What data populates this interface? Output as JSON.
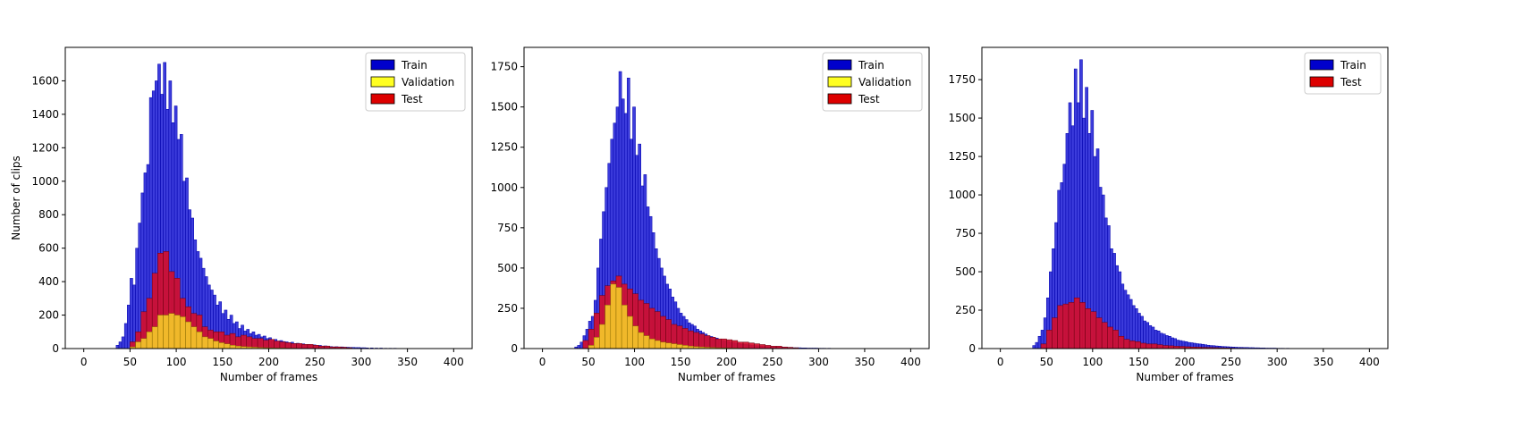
{
  "chart_data": [
    {
      "type": "histogram",
      "xlabel": "Number of frames",
      "ylabel": "Number of clips",
      "xlim": [
        -20,
        420
      ],
      "ylim": [
        0,
        1800
      ],
      "xticks": [
        0,
        50,
        100,
        150,
        200,
        250,
        300,
        350,
        400
      ],
      "yticks": [
        0,
        200,
        400,
        600,
        800,
        1000,
        1200,
        1400,
        1600
      ],
      "legend_position": "top-right",
      "colors": {
        "Train": "#0000cc",
        "Validation": "#ffff22",
        "Test": "#dd0000"
      },
      "bars": {
        "Train": {
          "bin_width": 3,
          "x": [
            35,
            38,
            41,
            44,
            47,
            50,
            53,
            56,
            59,
            62,
            65,
            68,
            71,
            74,
            77,
            80,
            83,
            86,
            89,
            92,
            95,
            98,
            101,
            104,
            107,
            110,
            113,
            116,
            119,
            122,
            125,
            128,
            131,
            134,
            137,
            140,
            143,
            146,
            149,
            152,
            155,
            158,
            161,
            164,
            167,
            170,
            173,
            176,
            179,
            182,
            185,
            188,
            191,
            194,
            197,
            200,
            203,
            206,
            209,
            212,
            215,
            218,
            221,
            224,
            227,
            230,
            233,
            236,
            239,
            242,
            245,
            248,
            251,
            254,
            257,
            260,
            263,
            266,
            269,
            272,
            275,
            278,
            281,
            284,
            287,
            290,
            293,
            296,
            299,
            302,
            305,
            310,
            315,
            320,
            325,
            330,
            335,
            340
          ],
          "values": [
            20,
            40,
            70,
            150,
            260,
            420,
            380,
            600,
            750,
            930,
            1050,
            1100,
            1500,
            1540,
            1600,
            1700,
            1520,
            1710,
            1430,
            1600,
            1350,
            1450,
            1250,
            1280,
            1000,
            1020,
            830,
            780,
            650,
            580,
            540,
            480,
            430,
            380,
            350,
            320,
            260,
            280,
            210,
            230,
            175,
            200,
            150,
            160,
            120,
            140,
            105,
            115,
            90,
            100,
            80,
            85,
            70,
            75,
            60,
            65,
            50,
            55,
            45,
            48,
            42,
            40,
            35,
            38,
            30,
            32,
            26,
            28,
            22,
            24,
            20,
            22,
            18,
            19,
            15,
            16,
            13,
            12,
            10,
            11,
            9,
            10,
            8,
            8,
            7,
            7,
            6,
            6,
            5,
            5,
            4,
            4,
            3,
            3,
            2,
            2,
            2,
            1
          ]
        },
        "Test": {
          "bin_width": 6,
          "x": [
            50,
            56,
            62,
            68,
            74,
            80,
            86,
            92,
            98,
            104,
            110,
            116,
            122,
            128,
            134,
            140,
            146,
            152,
            158,
            164,
            170,
            176,
            182,
            188,
            194,
            200,
            206,
            212,
            218,
            224,
            230,
            236,
            242,
            248,
            254,
            260,
            266,
            272,
            278,
            284
          ],
          "values": [
            40,
            100,
            220,
            300,
            450,
            570,
            580,
            460,
            420,
            300,
            250,
            210,
            200,
            130,
            110,
            100,
            100,
            80,
            90,
            70,
            80,
            70,
            60,
            60,
            50,
            55,
            45,
            40,
            35,
            30,
            30,
            25,
            25,
            20,
            15,
            15,
            10,
            10,
            8,
            5
          ]
        },
        "Validation": {
          "bin_width": 6,
          "x": [
            50,
            56,
            62,
            68,
            74,
            80,
            86,
            92,
            98,
            104,
            110,
            116,
            122,
            128,
            134,
            140,
            146,
            152,
            158,
            164,
            170,
            176,
            182,
            188,
            194,
            200,
            206,
            212,
            218,
            224,
            230,
            236
          ],
          "values": [
            10,
            40,
            60,
            100,
            130,
            200,
            200,
            210,
            200,
            190,
            160,
            130,
            100,
            70,
            60,
            45,
            35,
            28,
            20,
            15,
            12,
            10,
            8,
            6,
            5,
            4,
            3,
            3,
            2,
            2,
            1,
            1
          ]
        }
      }
    },
    {
      "type": "histogram",
      "xlabel": "Number of frames",
      "ylabel": "",
      "xlim": [
        -20,
        420
      ],
      "ylim": [
        0,
        1870
      ],
      "xticks": [
        0,
        50,
        100,
        150,
        200,
        250,
        300,
        350,
        400
      ],
      "yticks": [
        0,
        250,
        500,
        750,
        1000,
        1250,
        1500,
        1750
      ],
      "legend_position": "top-right",
      "colors": {
        "Train": "#0000cc",
        "Validation": "#ffff22",
        "Test": "#dd0000"
      },
      "bars": {
        "Train": {
          "bin_width": 3,
          "x": [
            35,
            38,
            41,
            44,
            47,
            50,
            53,
            56,
            59,
            62,
            65,
            68,
            71,
            74,
            77,
            80,
            83,
            86,
            89,
            92,
            95,
            98,
            101,
            104,
            107,
            110,
            113,
            116,
            119,
            122,
            125,
            128,
            131,
            134,
            137,
            140,
            143,
            146,
            149,
            152,
            155,
            158,
            161,
            164,
            167,
            170,
            173,
            176,
            179,
            182,
            185,
            188,
            191,
            194,
            197,
            200,
            203,
            206,
            209,
            212,
            215,
            218,
            221,
            224,
            227,
            230,
            233,
            236,
            239,
            242,
            245,
            248,
            251,
            254,
            257,
            260,
            263,
            266,
            269,
            272,
            275,
            278,
            281,
            284,
            287,
            290,
            293,
            296,
            299,
            302,
            305,
            310,
            315,
            320,
            325,
            330,
            335,
            340
          ],
          "values": [
            10,
            20,
            40,
            80,
            120,
            170,
            200,
            300,
            500,
            680,
            850,
            1000,
            1150,
            1300,
            1400,
            1500,
            1720,
            1550,
            1460,
            1680,
            1300,
            1500,
            1200,
            1270,
            1010,
            1080,
            880,
            820,
            720,
            620,
            560,
            500,
            450,
            400,
            370,
            320,
            290,
            250,
            220,
            200,
            180,
            160,
            150,
            140,
            120,
            110,
            100,
            90,
            80,
            75,
            70,
            65,
            55,
            52,
            48,
            45,
            40,
            38,
            35,
            32,
            28,
            27,
            25,
            22,
            20,
            18,
            17,
            15,
            14,
            13,
            12,
            11,
            10,
            9,
            8,
            8,
            7,
            6,
            6,
            5,
            5,
            5,
            4,
            4,
            3,
            3,
            3,
            3,
            2,
            2,
            2,
            2,
            1,
            1,
            1,
            1,
            1,
            1
          ]
        },
        "Test": {
          "bin_width": 6,
          "x": [
            44,
            50,
            56,
            62,
            68,
            74,
            80,
            86,
            92,
            98,
            104,
            110,
            116,
            122,
            128,
            134,
            140,
            146,
            152,
            158,
            164,
            170,
            176,
            182,
            188,
            194,
            200,
            206,
            212,
            218,
            224,
            230,
            236,
            242,
            248,
            254,
            260,
            266,
            272
          ],
          "values": [
            50,
            120,
            220,
            330,
            390,
            420,
            450,
            400,
            370,
            340,
            300,
            280,
            250,
            230,
            200,
            180,
            150,
            140,
            125,
            110,
            100,
            90,
            80,
            70,
            60,
            60,
            55,
            50,
            40,
            40,
            35,
            30,
            25,
            20,
            15,
            15,
            10,
            8,
            5
          ]
        },
        "Validation": {
          "bin_width": 6,
          "x": [
            50,
            56,
            62,
            68,
            74,
            80,
            86,
            92,
            98,
            104,
            110,
            116,
            122,
            128,
            134,
            140,
            146,
            152,
            158,
            164,
            170,
            176,
            182,
            188,
            194,
            200,
            206,
            212,
            218,
            224,
            230,
            236
          ],
          "values": [
            20,
            70,
            150,
            270,
            400,
            380,
            270,
            200,
            140,
            100,
            80,
            60,
            50,
            40,
            35,
            30,
            25,
            20,
            15,
            12,
            10,
            8,
            6,
            5,
            4,
            3,
            3,
            2,
            2,
            1,
            1,
            1
          ]
        }
      }
    },
    {
      "type": "histogram",
      "xlabel": "Number of frames",
      "ylabel": "",
      "xlim": [
        -20,
        420
      ],
      "ylim": [
        0,
        1960
      ],
      "xticks": [
        0,
        50,
        100,
        150,
        200,
        250,
        300,
        350,
        400
      ],
      "yticks": [
        0,
        250,
        500,
        750,
        1000,
        1250,
        1500,
        1750
      ],
      "legend_position": "top-right",
      "colors": {
        "Train": "#0000cc",
        "Test": "#dd0000"
      },
      "bars": {
        "Train": {
          "bin_width": 3,
          "x": [
            35,
            38,
            41,
            44,
            47,
            50,
            53,
            56,
            59,
            62,
            65,
            68,
            71,
            74,
            77,
            80,
            83,
            86,
            89,
            92,
            95,
            98,
            101,
            104,
            107,
            110,
            113,
            116,
            119,
            122,
            125,
            128,
            131,
            134,
            137,
            140,
            143,
            146,
            149,
            152,
            155,
            158,
            161,
            164,
            167,
            170,
            173,
            176,
            179,
            182,
            185,
            188,
            191,
            194,
            197,
            200,
            203,
            206,
            209,
            212,
            215,
            218,
            221,
            224,
            227,
            230,
            233,
            236,
            239,
            242,
            245,
            248,
            251,
            254,
            257,
            260,
            263,
            266,
            269,
            272,
            275,
            278,
            281,
            284,
            287,
            290,
            293,
            296,
            299,
            302,
            305,
            310,
            315,
            320,
            325,
            330,
            335,
            340
          ],
          "values": [
            20,
            40,
            80,
            120,
            200,
            330,
            500,
            650,
            820,
            1030,
            1080,
            1200,
            1400,
            1600,
            1450,
            1820,
            1600,
            1880,
            1500,
            1700,
            1400,
            1550,
            1250,
            1300,
            1050,
            1000,
            850,
            800,
            650,
            620,
            540,
            500,
            420,
            380,
            350,
            320,
            280,
            260,
            230,
            210,
            180,
            170,
            150,
            140,
            120,
            115,
            100,
            95,
            85,
            80,
            70,
            65,
            55,
            52,
            48,
            45,
            40,
            38,
            35,
            32,
            30,
            28,
            25,
            22,
            20,
            19,
            17,
            16,
            14,
            13,
            12,
            11,
            10,
            9,
            8,
            8,
            7,
            7,
            6,
            6,
            5,
            5,
            4,
            4,
            3,
            3,
            3,
            3,
            2,
            2,
            2,
            2,
            1,
            1,
            1,
            1,
            1,
            1
          ]
        },
        "Test": {
          "bin_width": 6,
          "x": [
            44,
            50,
            56,
            62,
            68,
            74,
            80,
            86,
            92,
            98,
            104,
            110,
            116,
            122,
            128,
            134,
            140,
            146,
            152,
            158,
            164,
            170,
            176,
            182,
            188,
            194,
            200,
            206,
            212,
            218,
            224,
            230,
            236,
            242,
            248,
            254,
            260
          ],
          "values": [
            30,
            120,
            200,
            280,
            290,
            300,
            330,
            300,
            260,
            240,
            200,
            170,
            140,
            120,
            80,
            60,
            50,
            45,
            35,
            30,
            30,
            25,
            20,
            18,
            15,
            14,
            12,
            10,
            9,
            8,
            7,
            6,
            5,
            4,
            3,
            2,
            2
          ]
        }
      }
    }
  ],
  "legend_labels": {
    "train": "Train",
    "validation": "Validation",
    "test": "Test"
  }
}
